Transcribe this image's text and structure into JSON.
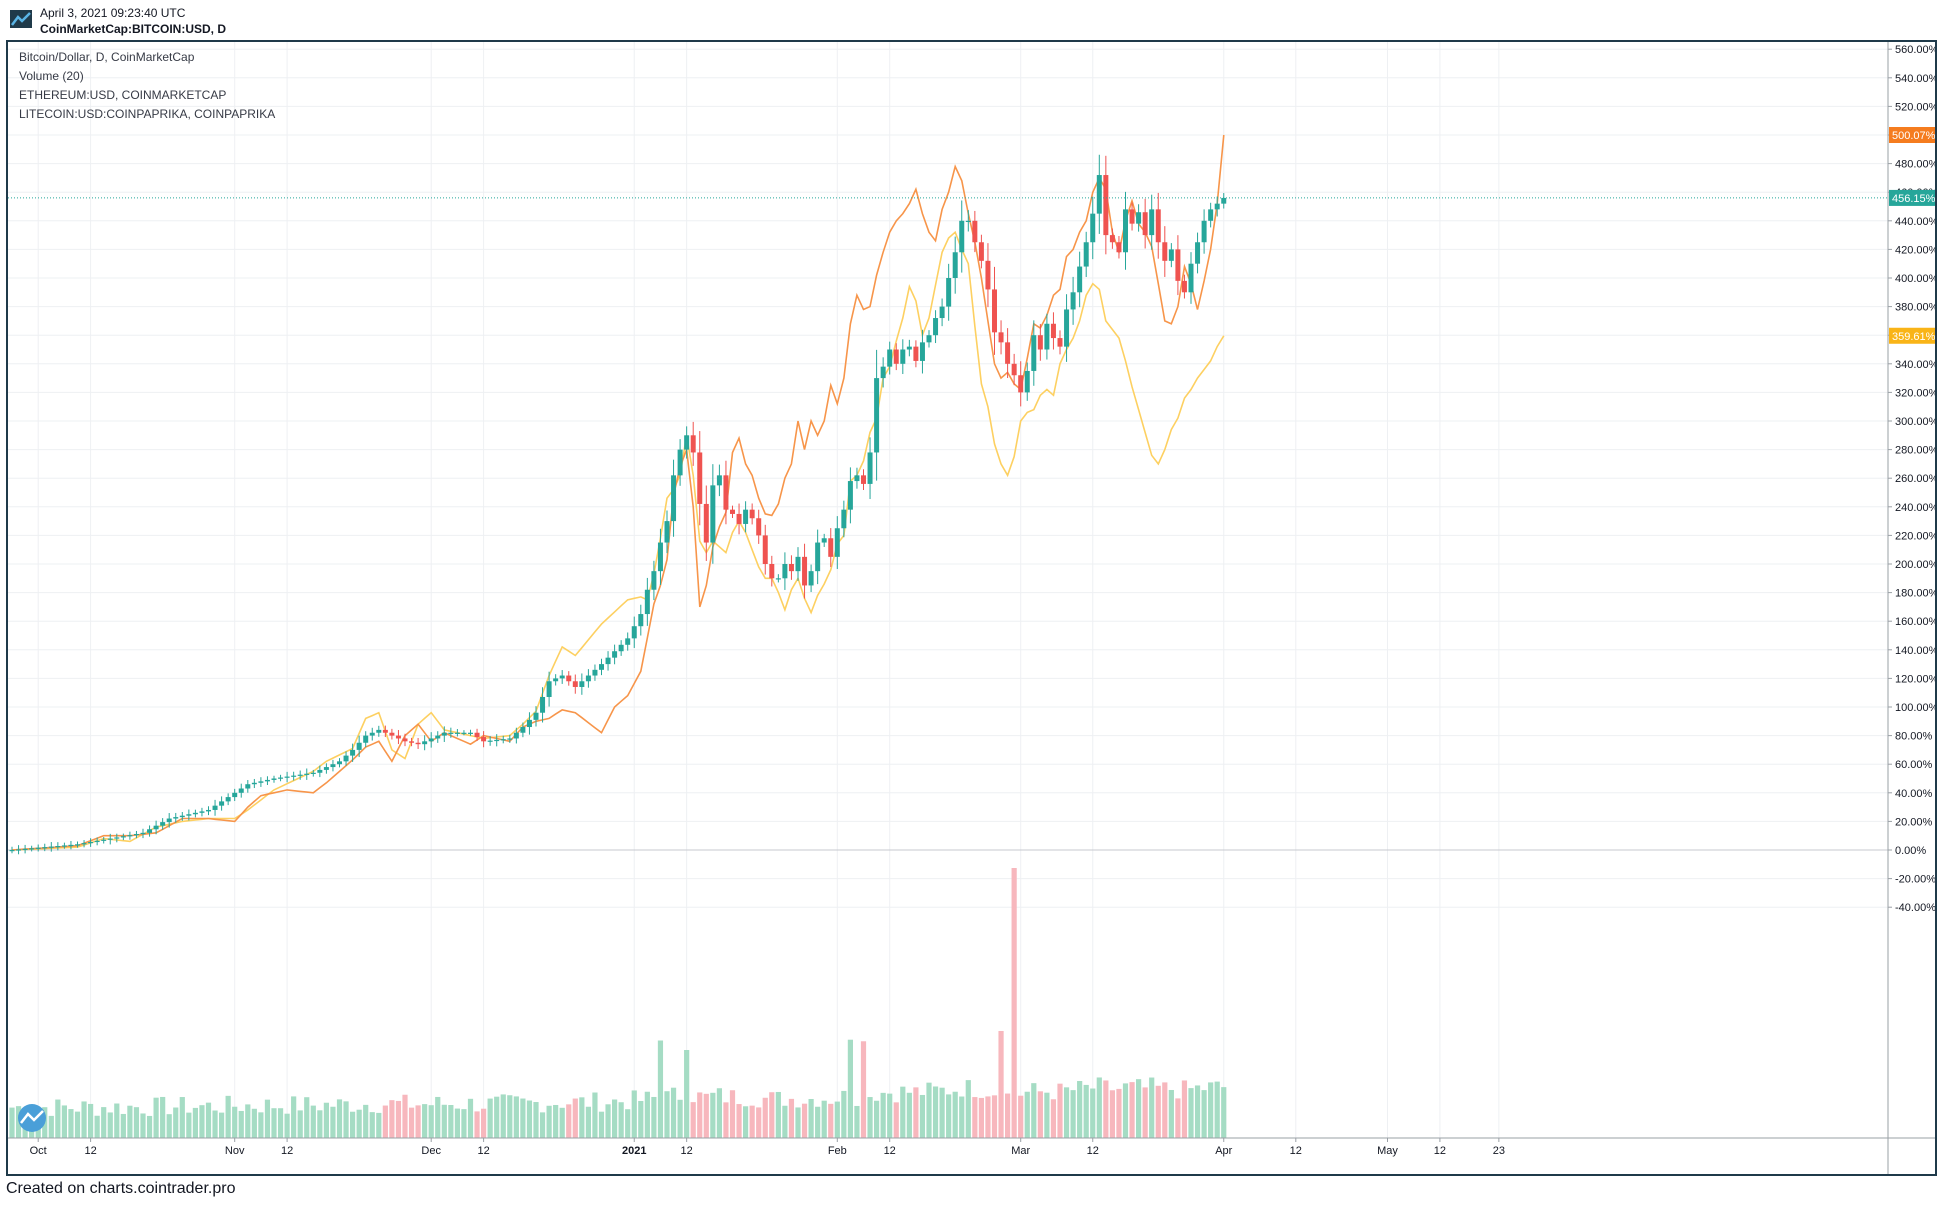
{
  "header": {
    "date": "April 3, 2021 09:23:40 UTC",
    "symbol": "CoinMarketCap:BITCOIN:USD, D"
  },
  "legend": {
    "main": "Bitcoin/Dollar, D, CoinMarketCap",
    "volume": "Volume (20)",
    "eth": "ETHEREUM:USD, COINMARKETCAP",
    "ltc": "LITECOIN:USD:COINPAPRIKA, COINPAPRIKA"
  },
  "footer": "Created on charts.cointrader.pro",
  "chart_data": {
    "type": "line",
    "title": "Bitcoin/Dollar, D, CoinMarketCap",
    "scale": "percent change",
    "ylim": [
      -50,
      570
    ],
    "y_ticks": [
      "560.00%",
      "540.00%",
      "520.00%",
      "500.00%",
      "480.00%",
      "460.00%",
      "440.00%",
      "420.00%",
      "400.00%",
      "380.00%",
      "360.00%",
      "340.00%",
      "320.00%",
      "300.00%",
      "280.00%",
      "260.00%",
      "240.00%",
      "220.00%",
      "200.00%",
      "180.00%",
      "160.00%",
      "140.00%",
      "120.00%",
      "100.00%",
      "80.00%",
      "60.00%",
      "40.00%",
      "20.00%",
      "0.00%",
      "-20.00%",
      "-40.00%"
    ],
    "x_ticks": [
      {
        "label": "Oct",
        "day": 4
      },
      {
        "label": "12",
        "day": 12
      },
      {
        "label": "Nov",
        "day": 34
      },
      {
        "label": "12",
        "day": 42
      },
      {
        "label": "Dec",
        "day": 64
      },
      {
        "label": "12",
        "day": 72
      },
      {
        "label": "2021",
        "day": 95
      },
      {
        "label": "12",
        "day": 103
      },
      {
        "label": "Feb",
        "day": 126
      },
      {
        "label": "12",
        "day": 134
      },
      {
        "label": "Mar",
        "day": 154
      },
      {
        "label": "12",
        "day": 165
      },
      {
        "label": "Apr",
        "day": 185
      },
      {
        "label": "12",
        "day": 196
      },
      {
        "label": "May",
        "day": 210
      },
      {
        "label": "12",
        "day": 218
      },
      {
        "label": "23",
        "day": 227
      }
    ],
    "x_range_days": [
      0,
      229
    ],
    "last_values": {
      "bitcoin": "456.15%",
      "ethereum": "500.07%",
      "litecoin": "359.61%"
    },
    "colors": {
      "up": "#26a69a",
      "down": "#ef5350",
      "ethereum": "#f7954a",
      "litecoin": "#fdd061",
      "bitcoin_tag": "#26a69a",
      "ethereum_tag": "#f57c1f",
      "litecoin_tag": "#f9b417",
      "vol_up": "#a5dcc4",
      "vol_down": "#f7b7bd"
    },
    "bitcoin_close_anchors": [
      [
        0,
        0
      ],
      [
        10,
        4
      ],
      [
        20,
        12
      ],
      [
        24,
        22
      ],
      [
        30,
        28
      ],
      [
        36,
        46
      ],
      [
        40,
        50
      ],
      [
        46,
        54
      ],
      [
        50,
        62
      ],
      [
        52,
        70
      ],
      [
        54,
        80
      ],
      [
        56,
        84
      ],
      [
        60,
        76
      ],
      [
        62,
        74
      ],
      [
        66,
        82
      ],
      [
        70,
        82
      ],
      [
        72,
        76
      ],
      [
        76,
        78
      ],
      [
        78,
        86
      ],
      [
        80,
        96
      ],
      [
        82,
        118
      ],
      [
        84,
        122
      ],
      [
        86,
        114
      ],
      [
        90,
        130
      ],
      [
        94,
        148
      ],
      [
        96,
        165
      ],
      [
        97,
        182
      ],
      [
        98,
        195
      ],
      [
        99,
        215
      ],
      [
        100,
        230
      ],
      [
        101,
        262
      ],
      [
        102,
        280
      ],
      [
        103,
        290
      ],
      [
        104,
        278
      ],
      [
        105,
        242
      ],
      [
        106,
        215
      ],
      [
        107,
        255
      ],
      [
        108,
        262
      ],
      [
        109,
        238
      ],
      [
        110,
        235
      ],
      [
        111,
        228
      ],
      [
        112,
        238
      ],
      [
        113,
        232
      ],
      [
        114,
        220
      ],
      [
        115,
        200
      ],
      [
        116,
        190
      ],
      [
        117,
        190
      ],
      [
        118,
        200
      ],
      [
        119,
        195
      ],
      [
        120,
        205
      ],
      [
        121,
        185
      ],
      [
        122,
        195
      ],
      [
        123,
        215
      ],
      [
        124,
        218
      ],
      [
        125,
        205
      ],
      [
        126,
        225
      ],
      [
        127,
        238
      ],
      [
        128,
        258
      ],
      [
        129,
        262
      ],
      [
        130,
        256
      ],
      [
        131,
        278
      ],
      [
        132,
        330
      ],
      [
        133,
        338
      ],
      [
        134,
        350
      ],
      [
        135,
        340
      ],
      [
        136,
        350
      ],
      [
        137,
        352
      ],
      [
        138,
        342
      ],
      [
        139,
        355
      ],
      [
        140,
        360
      ],
      [
        141,
        372
      ],
      [
        142,
        380
      ],
      [
        143,
        400
      ],
      [
        144,
        418
      ],
      [
        145,
        440
      ],
      [
        146,
        440
      ],
      [
        147,
        425
      ],
      [
        148,
        412
      ],
      [
        149,
        392
      ],
      [
        150,
        362
      ],
      [
        151,
        355
      ],
      [
        152,
        340
      ],
      [
        153,
        332
      ],
      [
        154,
        320
      ],
      [
        155,
        335
      ],
      [
        156,
        360
      ],
      [
        157,
        350
      ],
      [
        158,
        368
      ],
      [
        159,
        358
      ],
      [
        160,
        352
      ],
      [
        161,
        378
      ],
      [
        162,
        390
      ],
      [
        163,
        408
      ],
      [
        164,
        425
      ],
      [
        165,
        445
      ],
      [
        166,
        472
      ],
      [
        167,
        430
      ],
      [
        168,
        425
      ],
      [
        169,
        418
      ],
      [
        170,
        448
      ],
      [
        171,
        438
      ],
      [
        172,
        446
      ],
      [
        173,
        430
      ],
      [
        174,
        448
      ],
      [
        175,
        425
      ],
      [
        176,
        412
      ],
      [
        177,
        420
      ],
      [
        178,
        398
      ],
      [
        179,
        390
      ],
      [
        180,
        410
      ],
      [
        181,
        425
      ],
      [
        182,
        440
      ],
      [
        183,
        448
      ],
      [
        184,
        452
      ],
      [
        185,
        456
      ]
    ],
    "ethereum_anchors": [
      [
        0,
        0
      ],
      [
        10,
        3
      ],
      [
        14,
        10
      ],
      [
        18,
        10
      ],
      [
        22,
        12
      ],
      [
        26,
        22
      ],
      [
        30,
        22
      ],
      [
        34,
        20
      ],
      [
        36,
        30
      ],
      [
        38,
        38
      ],
      [
        42,
        42
      ],
      [
        46,
        40
      ],
      [
        48,
        47
      ],
      [
        52,
        63
      ],
      [
        54,
        72
      ],
      [
        56,
        76
      ],
      [
        58,
        62
      ],
      [
        60,
        80
      ],
      [
        62,
        88
      ],
      [
        64,
        76
      ],
      [
        66,
        82
      ],
      [
        70,
        74
      ],
      [
        72,
        80
      ],
      [
        76,
        76
      ],
      [
        78,
        86
      ],
      [
        80,
        90
      ],
      [
        82,
        92
      ],
      [
        84,
        98
      ],
      [
        86,
        96
      ],
      [
        90,
        82
      ],
      [
        92,
        100
      ],
      [
        94,
        108
      ],
      [
        96,
        125
      ],
      [
        98,
        172
      ],
      [
        99,
        185
      ],
      [
        100,
        203
      ],
      [
        101,
        248
      ],
      [
        102,
        268
      ],
      [
        103,
        280
      ],
      [
        104,
        240
      ],
      [
        105,
        170
      ],
      [
        106,
        185
      ],
      [
        107,
        212
      ],
      [
        108,
        226
      ],
      [
        109,
        236
      ],
      [
        110,
        278
      ],
      [
        111,
        288
      ],
      [
        112,
        270
      ],
      [
        113,
        262
      ],
      [
        114,
        246
      ],
      [
        115,
        235
      ],
      [
        116,
        234
      ],
      [
        117,
        242
      ],
      [
        118,
        260
      ],
      [
        119,
        270
      ],
      [
        120,
        300
      ],
      [
        121,
        280
      ],
      [
        122,
        300
      ],
      [
        123,
        290
      ],
      [
        124,
        300
      ],
      [
        125,
        325
      ],
      [
        126,
        312
      ],
      [
        127,
        330
      ],
      [
        128,
        368
      ],
      [
        129,
        388
      ],
      [
        130,
        378
      ],
      [
        131,
        380
      ],
      [
        132,
        402
      ],
      [
        133,
        418
      ],
      [
        134,
        432
      ],
      [
        135,
        440
      ],
      [
        136,
        445
      ],
      [
        137,
        452
      ],
      [
        138,
        462
      ],
      [
        139,
        445
      ],
      [
        140,
        432
      ],
      [
        141,
        426
      ],
      [
        142,
        448
      ],
      [
        143,
        460
      ],
      [
        144,
        478
      ],
      [
        145,
        468
      ],
      [
        146,
        445
      ],
      [
        147,
        425
      ],
      [
        148,
        400
      ],
      [
        149,
        370
      ],
      [
        150,
        340
      ],
      [
        151,
        330
      ],
      [
        152,
        334
      ],
      [
        153,
        326
      ],
      [
        154,
        322
      ],
      [
        155,
        344
      ],
      [
        156,
        368
      ],
      [
        157,
        365
      ],
      [
        158,
        374
      ],
      [
        159,
        388
      ],
      [
        160,
        392
      ],
      [
        161,
        415
      ],
      [
        162,
        420
      ],
      [
        163,
        432
      ],
      [
        164,
        440
      ],
      [
        165,
        460
      ],
      [
        166,
        470
      ],
      [
        167,
        462
      ],
      [
        168,
        432
      ],
      [
        169,
        418
      ],
      [
        170,
        440
      ],
      [
        171,
        454
      ],
      [
        172,
        438
      ],
      [
        173,
        432
      ],
      [
        174,
        422
      ],
      [
        175,
        396
      ],
      [
        176,
        370
      ],
      [
        177,
        368
      ],
      [
        178,
        380
      ],
      [
        179,
        408
      ],
      [
        180,
        396
      ],
      [
        181,
        378
      ],
      [
        182,
        398
      ],
      [
        183,
        420
      ],
      [
        184,
        452
      ],
      [
        185,
        500
      ]
    ],
    "litecoin_anchors": [
      [
        0,
        0
      ],
      [
        10,
        2
      ],
      [
        14,
        8
      ],
      [
        18,
        6
      ],
      [
        22,
        16
      ],
      [
        26,
        20
      ],
      [
        30,
        22
      ],
      [
        34,
        22
      ],
      [
        36,
        28
      ],
      [
        40,
        42
      ],
      [
        46,
        55
      ],
      [
        48,
        62
      ],
      [
        52,
        71
      ],
      [
        54,
        92
      ],
      [
        56,
        96
      ],
      [
        58,
        70
      ],
      [
        60,
        64
      ],
      [
        62,
        88
      ],
      [
        64,
        96
      ],
      [
        66,
        84
      ],
      [
        70,
        80
      ],
      [
        72,
        78
      ],
      [
        76,
        80
      ],
      [
        78,
        88
      ],
      [
        80,
        97
      ],
      [
        82,
        122
      ],
      [
        84,
        142
      ],
      [
        86,
        136
      ],
      [
        90,
        158
      ],
      [
        94,
        175
      ],
      [
        96,
        177
      ],
      [
        97,
        175
      ],
      [
        98,
        193
      ],
      [
        99,
        218
      ],
      [
        100,
        246
      ],
      [
        101,
        252
      ],
      [
        102,
        262
      ],
      [
        103,
        290
      ],
      [
        104,
        262
      ],
      [
        105,
        216
      ],
      [
        106,
        208
      ],
      [
        107,
        216
      ],
      [
        108,
        212
      ],
      [
        109,
        208
      ],
      [
        110,
        222
      ],
      [
        111,
        230
      ],
      [
        112,
        222
      ],
      [
        113,
        210
      ],
      [
        114,
        198
      ],
      [
        115,
        190
      ],
      [
        116,
        190
      ],
      [
        117,
        180
      ],
      [
        118,
        168
      ],
      [
        119,
        182
      ],
      [
        120,
        190
      ],
      [
        121,
        176
      ],
      [
        122,
        166
      ],
      [
        123,
        178
      ],
      [
        124,
        186
      ],
      [
        125,
        196
      ],
      [
        126,
        214
      ],
      [
        127,
        220
      ],
      [
        128,
        258
      ],
      [
        129,
        262
      ],
      [
        130,
        272
      ],
      [
        131,
        292
      ],
      [
        132,
        302
      ],
      [
        133,
        330
      ],
      [
        134,
        338
      ],
      [
        135,
        356
      ],
      [
        136,
        372
      ],
      [
        137,
        394
      ],
      [
        138,
        384
      ],
      [
        139,
        360
      ],
      [
        140,
        372
      ],
      [
        141,
        395
      ],
      [
        142,
        418
      ],
      [
        143,
        428
      ],
      [
        144,
        432
      ],
      [
        145,
        420
      ],
      [
        146,
        410
      ],
      [
        147,
        366
      ],
      [
        148,
        326
      ],
      [
        149,
        310
      ],
      [
        150,
        284
      ],
      [
        151,
        270
      ],
      [
        152,
        262
      ],
      [
        153,
        275
      ],
      [
        154,
        300
      ],
      [
        155,
        306
      ],
      [
        156,
        308
      ],
      [
        157,
        318
      ],
      [
        158,
        322
      ],
      [
        159,
        318
      ],
      [
        160,
        340
      ],
      [
        161,
        350
      ],
      [
        162,
        358
      ],
      [
        163,
        370
      ],
      [
        164,
        388
      ],
      [
        165,
        396
      ],
      [
        166,
        392
      ],
      [
        167,
        370
      ],
      [
        168,
        364
      ],
      [
        169,
        358
      ],
      [
        170,
        342
      ],
      [
        171,
        324
      ],
      [
        172,
        308
      ],
      [
        173,
        292
      ],
      [
        174,
        276
      ],
      [
        175,
        270
      ],
      [
        176,
        280
      ],
      [
        177,
        294
      ],
      [
        178,
        302
      ],
      [
        179,
        316
      ],
      [
        180,
        322
      ],
      [
        181,
        330
      ],
      [
        182,
        336
      ],
      [
        183,
        342
      ],
      [
        184,
        352
      ],
      [
        185,
        359.61
      ]
    ],
    "volume": {
      "note": "relative daily volume (0-1) for the Volume (20) pane, one per day from day 0 to 185",
      "spike_day": 153,
      "spike_value": 1.0
    }
  }
}
